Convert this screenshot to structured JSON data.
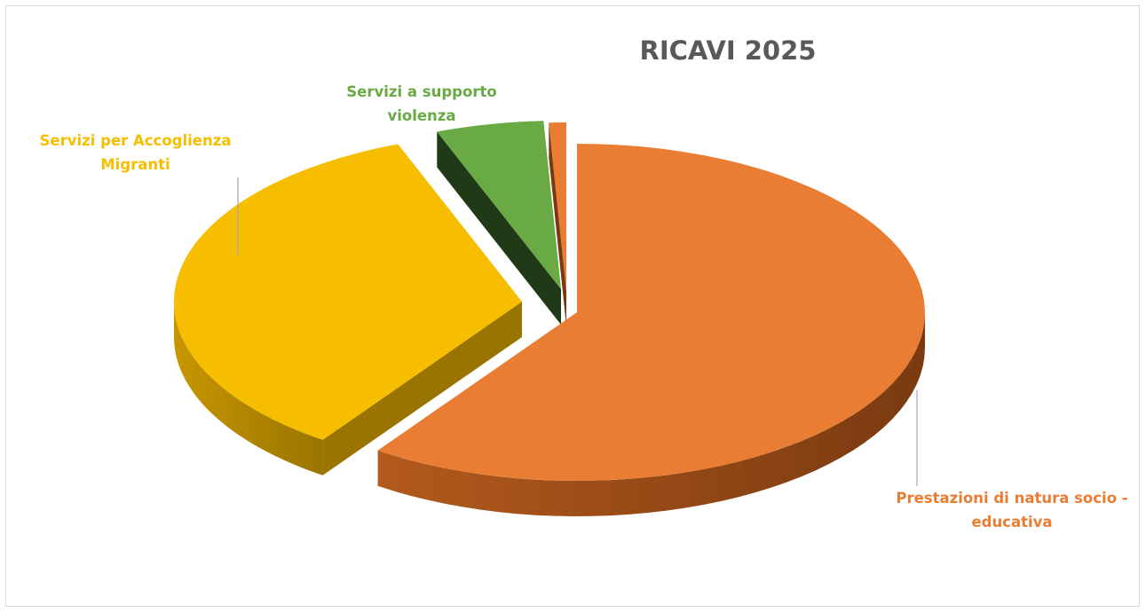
{
  "chart_data": {
    "type": "pie",
    "title": "RICAVI 2025",
    "series": [
      {
        "name": "",
        "slices": [
          {
            "label": "Prestazioni di natura socio - educativa",
            "value": 59.7,
            "color": "#E97D34",
            "side": "#B35A1C",
            "dark": "#7A3A10",
            "text_color": "#E97D34"
          },
          {
            "label": "Servizi per Accoglienza Migranti",
            "value": 34.5,
            "color": "#F7BE00",
            "side": "#C79600",
            "dark": "#9A7400",
            "text_color": "#F7BE00"
          },
          {
            "label": "Servizi a supporto violenza",
            "value": 5.0,
            "color": "#6AAA44",
            "side": "#2D4F20",
            "dark": "#203A17",
            "text_color": "#6AAA44"
          },
          {
            "label": "",
            "value": 0.8,
            "color": "#E97D34",
            "side": "#B35A1C",
            "dark": "#7A3A10",
            "text_color": "#E97D34"
          }
        ]
      }
    ],
    "legend": "none",
    "style": "3d-exploded"
  }
}
